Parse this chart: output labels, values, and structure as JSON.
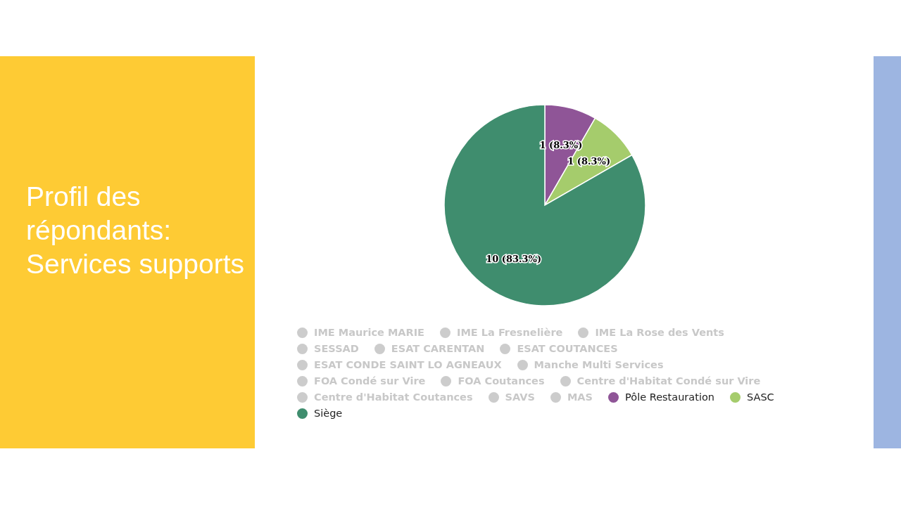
{
  "chart_data": {
    "type": "pie",
    "title": "Profil des répondants: Services supports",
    "categories": [
      "IME Maurice MARIE",
      "IME La Fresnelière",
      "IME La Rose des Vents",
      "SESSAD",
      "ESAT CARENTAN",
      "ESAT COUTANCES",
      "ESAT CONDE SAINT LO AGNEAUX",
      "Manche Multi Services",
      "FOA Condé sur Vire",
      "FOA Coutances",
      "Centre d'Habitat Condé sur Vire",
      "Centre d'Habitat Coutances",
      "SAVS",
      "MAS",
      "Pôle Restauration",
      "SASC",
      "Siège"
    ],
    "values": [
      0,
      0,
      0,
      0,
      0,
      0,
      0,
      0,
      0,
      0,
      0,
      0,
      0,
      0,
      1,
      1,
      10
    ],
    "colors": [
      "#cccccc",
      "#cccccc",
      "#cccccc",
      "#cccccc",
      "#cccccc",
      "#cccccc",
      "#cccccc",
      "#cccccc",
      "#cccccc",
      "#cccccc",
      "#cccccc",
      "#cccccc",
      "#cccccc",
      "#cccccc",
      "#8f5597",
      "#a5cc6c",
      "#3f8d6e"
    ],
    "value_labels": [
      null,
      null,
      null,
      null,
      null,
      null,
      null,
      null,
      null,
      null,
      null,
      null,
      null,
      null,
      "1 (8.3%)",
      "1 (8.3%)",
      "10 (83.3%)"
    ],
    "legend": "bottom"
  }
}
